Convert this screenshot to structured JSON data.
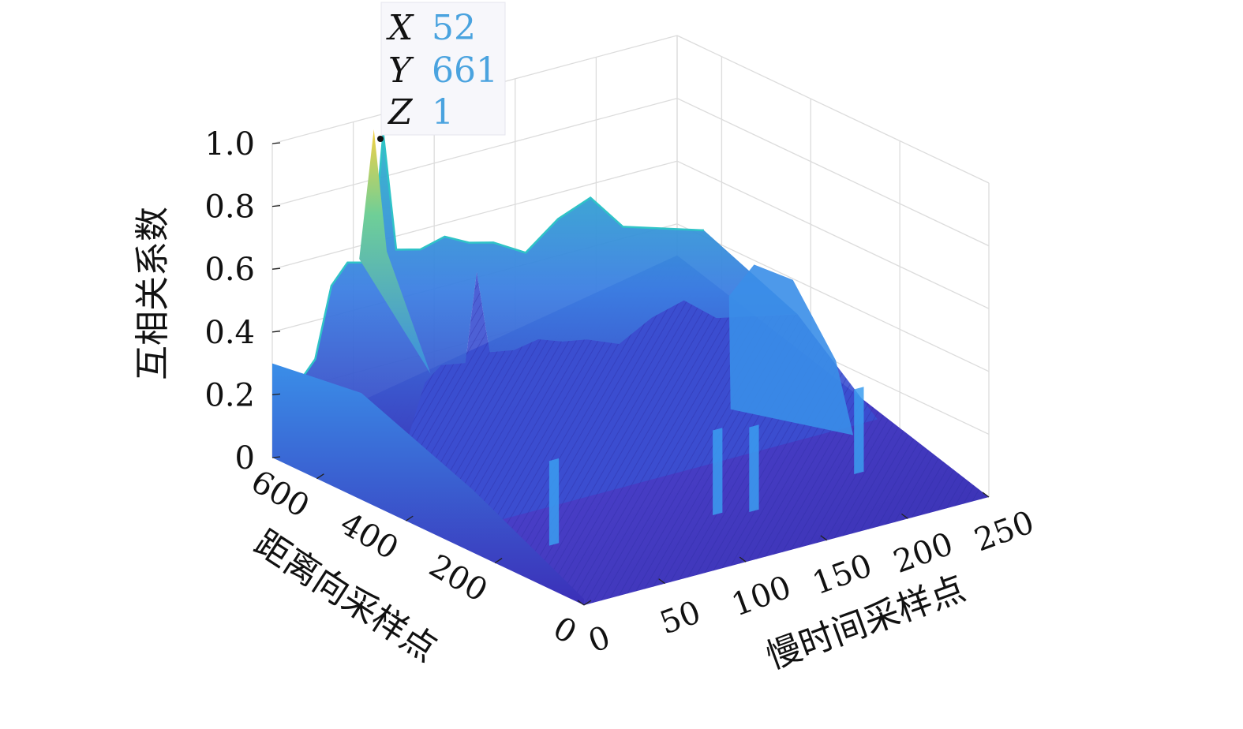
{
  "chart_data": {
    "type": "surface",
    "title": "",
    "xlabel": "慢时间采样点",
    "ylabel": "距离向采样点",
    "zlabel": "互相关系数",
    "x_ticks": [
      "0",
      "50",
      "100",
      "150",
      "200",
      "250"
    ],
    "y_ticks": [
      "0",
      "200",
      "400",
      "600"
    ],
    "z_ticks": [
      "0",
      "0.2",
      "0.4",
      "0.6",
      "0.8",
      "1.0"
    ],
    "xlim": [
      0,
      250
    ],
    "ylim": [
      0,
      700
    ],
    "zlim": [
      0,
      1
    ],
    "grid": true,
    "colormap": "parula",
    "peak": {
      "x": 52,
      "y": 661,
      "z": 1
    },
    "datatip": {
      "x_key": "X",
      "x_value": "52",
      "y_key": "Y",
      "y_value": "661",
      "z_key": "Z",
      "z_value": "1",
      "value_color": "#4aa3df"
    },
    "back_ridge_profile": [
      {
        "x": 0,
        "z": 0.28
      },
      {
        "x": 10,
        "z": 0.34
      },
      {
        "x": 20,
        "z": 0.56
      },
      {
        "x": 30,
        "z": 0.62
      },
      {
        "x": 45,
        "z": 0.6
      },
      {
        "x": 52,
        "z": 1.0
      },
      {
        "x": 60,
        "z": 0.62
      },
      {
        "x": 75,
        "z": 0.6
      },
      {
        "x": 90,
        "z": 0.62
      },
      {
        "x": 105,
        "z": 0.58
      },
      {
        "x": 120,
        "z": 0.56
      },
      {
        "x": 140,
        "z": 0.5
      },
      {
        "x": 160,
        "z": 0.58
      },
      {
        "x": 180,
        "z": 0.62
      },
      {
        "x": 200,
        "z": 0.5
      },
      {
        "x": 225,
        "z": 0.46
      },
      {
        "x": 250,
        "z": 0.42
      }
    ]
  }
}
